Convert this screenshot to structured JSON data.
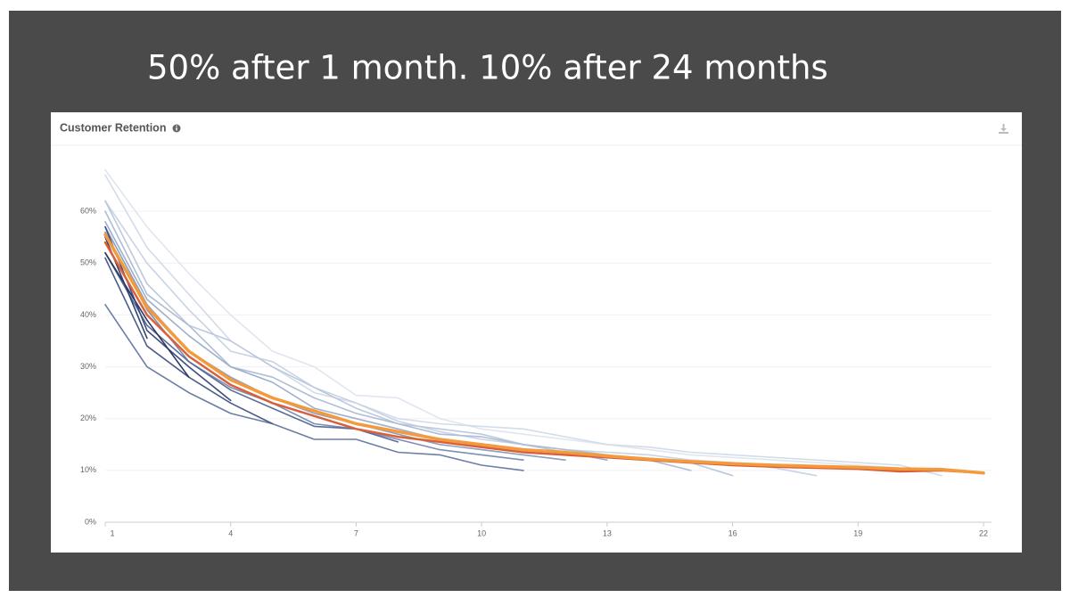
{
  "slide": {
    "title": "50% after 1 month. 10% after 24 months"
  },
  "chart_data": {
    "type": "line",
    "title": "Customer Retention",
    "x": [
      1,
      2,
      3,
      4,
      5,
      6,
      7,
      8,
      9,
      10,
      11,
      12,
      13,
      14,
      15,
      16,
      17,
      18,
      19,
      20,
      21,
      22
    ],
    "xlim": [
      1,
      22
    ],
    "xticks": [
      1,
      4,
      7,
      10,
      13,
      16,
      19,
      22
    ],
    "ylim": [
      0,
      70
    ],
    "yticks": [
      {
        "value": 0,
        "label": "0%"
      },
      {
        "value": 10,
        "label": "10%"
      },
      {
        "value": 20,
        "label": "20%"
      },
      {
        "value": 30,
        "label": "30%"
      },
      {
        "value": 40,
        "label": "40%"
      },
      {
        "value": 50,
        "label": "50%"
      },
      {
        "value": 60,
        "label": "60%"
      }
    ],
    "grid": true,
    "series": [
      {
        "color": "#dfe6ef",
        "values": [
          68,
          57,
          48,
          40,
          33,
          30,
          24.5,
          24,
          20,
          18,
          17,
          16,
          15,
          14,
          13,
          12.5,
          12,
          11.5,
          11,
          10.5,
          10,
          null
        ]
      },
      {
        "color": "#d3dcea",
        "values": [
          67,
          53,
          44,
          35,
          30,
          25,
          23,
          20,
          19,
          18.5,
          18,
          16.5,
          15,
          14.5,
          13.5,
          13,
          12.5,
          12,
          11.5,
          11,
          9,
          null
        ]
      },
      {
        "color": "#c8d3e4",
        "values": [
          62,
          50,
          41,
          33,
          31,
          26,
          23,
          19.5,
          17.5,
          16,
          15,
          14,
          13.5,
          13,
          12,
          11.5,
          10.5,
          9,
          null,
          null,
          null,
          null
        ]
      },
      {
        "color": "#bcc9dd",
        "values": [
          62,
          46,
          38,
          35,
          30,
          26,
          22,
          19,
          18,
          17,
          15,
          13.5,
          12.5,
          12,
          11.5,
          9,
          null,
          null,
          null,
          null,
          null,
          null
        ]
      },
      {
        "color": "#aebdd4",
        "values": [
          60,
          44,
          38,
          30,
          28,
          24,
          21,
          19,
          17,
          16.5,
          15,
          14,
          13,
          12,
          10,
          null,
          null,
          null,
          null,
          null,
          null,
          null
        ]
      },
      {
        "color": "#9eafcb",
        "values": [
          58,
          43,
          36,
          30,
          27,
          22,
          20,
          18,
          16,
          15,
          14,
          13.5,
          12,
          null,
          null,
          null,
          null,
          null,
          null,
          null,
          null,
          null
        ]
      },
      {
        "color": "#8d9fbf",
        "values": [
          57,
          42,
          33,
          28,
          24,
          21,
          19,
          17,
          15,
          14,
          13,
          12,
          null,
          null,
          null,
          null,
          null,
          null,
          null,
          null,
          null,
          null
        ]
      },
      {
        "color": "#7c8fb3",
        "values": [
          56,
          41,
          31,
          26,
          23,
          19,
          18,
          16,
          14,
          13,
          12,
          null,
          null,
          null,
          null,
          null,
          null,
          null,
          null,
          null,
          null,
          null
        ]
      },
      {
        "color": "#6b7ea6",
        "values": [
          42,
          30,
          25,
          21,
          19,
          16,
          16,
          13.5,
          13,
          11,
          10,
          null,
          null,
          null,
          null,
          null,
          null,
          null,
          null,
          null,
          null,
          null
        ]
      },
      {
        "color": "#5c6d98",
        "values": [
          52,
          38,
          31,
          25.5,
          22,
          18.5,
          18,
          15.5,
          null,
          null,
          null,
          null,
          null,
          null,
          null,
          null,
          null,
          null,
          null,
          null,
          null,
          null
        ]
      },
      {
        "color": "#4d5d8a",
        "values": [
          51,
          34,
          28,
          23,
          19,
          null,
          null,
          null,
          null,
          null,
          null,
          null,
          null,
          null,
          null,
          null,
          null,
          null,
          null,
          null,
          null,
          null
        ]
      },
      {
        "color": "#3f4e7c",
        "values": [
          57,
          37,
          30,
          23.5,
          null,
          null,
          null,
          null,
          null,
          null,
          null,
          null,
          null,
          null,
          null,
          null,
          null,
          null,
          null,
          null,
          null,
          null
        ]
      },
      {
        "color": "#34426e",
        "values": [
          55,
          35.5,
          null,
          null,
          null,
          null,
          null,
          null,
          null,
          null,
          null,
          null,
          null,
          null,
          null,
          null,
          null,
          null,
          null,
          null,
          null,
          null
        ]
      },
      {
        "color": "#2c3963",
        "values": [
          52,
          39,
          28,
          null,
          null,
          null,
          null,
          null,
          null,
          null,
          null,
          null,
          null,
          null,
          null,
          null,
          null,
          null,
          null,
          null,
          null,
          null
        ]
      },
      {
        "color": "#d9603b",
        "values": [
          54,
          40,
          32,
          26.5,
          23,
          20.5,
          18,
          16.5,
          15.5,
          14.5,
          13.5,
          13,
          12.5,
          12,
          11.5,
          11,
          10.7,
          10.5,
          10.3,
          9.8,
          10,
          9.5
        ]
      },
      {
        "color": "#f39a3c",
        "values": [
          55.5,
          41.5,
          33,
          27.5,
          24,
          21.5,
          19,
          17.5,
          16,
          15,
          14,
          13.5,
          12.8,
          12.2,
          11.7,
          11.3,
          11,
          10.8,
          10.6,
          10.3,
          10.2,
          9.5
        ]
      }
    ]
  }
}
